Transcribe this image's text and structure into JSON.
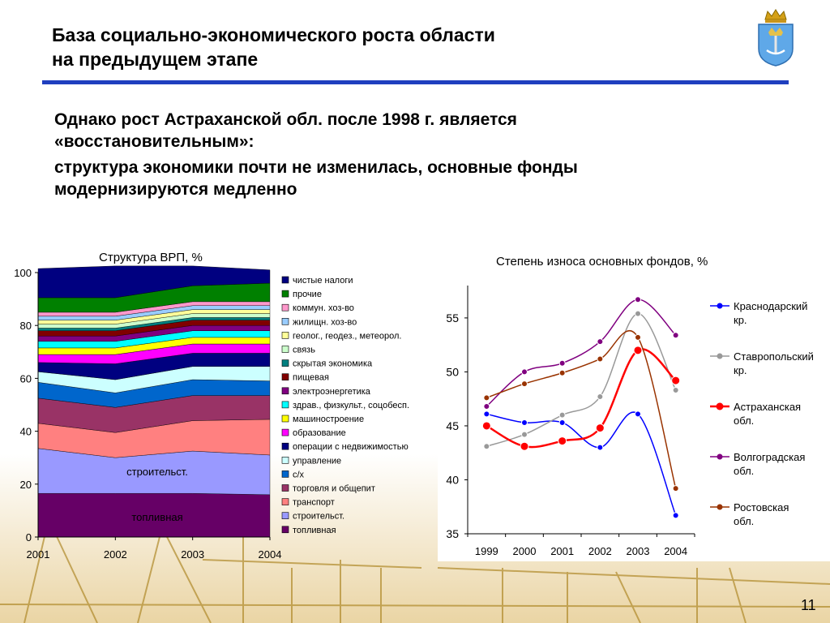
{
  "header": {
    "title_line1": "База социально-экономического роста области",
    "title_line2": "на предыдущем этапе",
    "emblem": "astrakhan-coat-of-arms"
  },
  "body": {
    "line1": "Однако рост Астраханской обл. после 1998 г. является",
    "line2": "«восстановительным»:",
    "line3": "структура экономики почти не изменилась,  основные фонды",
    "line4": "модернизируются медленно"
  },
  "page_number": "11",
  "chart_data": [
    {
      "type": "area",
      "title": "Структура ВРП, %",
      "categories": [
        "2001",
        "2002",
        "2003",
        "2004"
      ],
      "ylim": [
        0,
        100
      ],
      "yticks": [
        0,
        20,
        40,
        60,
        80,
        100
      ],
      "inline_labels": [
        "топливная",
        "строительст."
      ],
      "series": [
        {
          "name": "топливная",
          "color": "#660066",
          "values": [
            16.5,
            16.5,
            16.5,
            16.0
          ]
        },
        {
          "name": "строительст.",
          "color": "#9999ff",
          "values": [
            17.0,
            13.5,
            16.0,
            15.0
          ]
        },
        {
          "name": "транспорт",
          "color": "#ff8080",
          "values": [
            9.5,
            9.5,
            11.5,
            13.5
          ]
        },
        {
          "name": "торговля и общепит",
          "color": "#993366",
          "values": [
            9.5,
            9.5,
            9.5,
            9.0
          ]
        },
        {
          "name": "с/х",
          "color": "#0066cc",
          "values": [
            6.0,
            5.5,
            6.0,
            5.5
          ]
        },
        {
          "name": "управление",
          "color": "#ccffff",
          "values": [
            4.0,
            5.0,
            5.0,
            5.5
          ]
        },
        {
          "name": "операции с недвижимостью",
          "color": "#000080",
          "values": [
            3.5,
            6.0,
            5.0,
            5.0
          ]
        },
        {
          "name": "образование",
          "color": "#ff00ff",
          "values": [
            3.0,
            3.5,
            3.5,
            3.5
          ]
        },
        {
          "name": "машиностроение",
          "color": "#ffff00",
          "values": [
            2.5,
            2.5,
            2.5,
            2.5
          ]
        },
        {
          "name": "здрав., физкульт., соцобесп.",
          "color": "#00ffff",
          "values": [
            2.5,
            2.5,
            2.5,
            2.5
          ]
        },
        {
          "name": "электроэнергетика",
          "color": "#800080",
          "values": [
            2.0,
            2.0,
            2.0,
            2.0
          ]
        },
        {
          "name": "пищевая",
          "color": "#800000",
          "values": [
            2.0,
            2.0,
            2.0,
            2.0
          ]
        },
        {
          "name": "скрытая экономика",
          "color": "#008080",
          "values": [
            1.0,
            1.0,
            1.0,
            1.0
          ]
        },
        {
          "name": "связь",
          "color": "#ccffcc",
          "values": [
            1.5,
            1.5,
            1.5,
            1.5
          ]
        },
        {
          "name": "геолог., геодез., метеорол.",
          "color": "#ffff99",
          "values": [
            1.5,
            1.5,
            1.5,
            1.5
          ]
        },
        {
          "name": "жилищн. хоз-во",
          "color": "#99ccff",
          "values": [
            1.5,
            1.5,
            1.5,
            1.5
          ]
        },
        {
          "name": "коммун. хоз-во",
          "color": "#ff99cc",
          "values": [
            1.5,
            1.5,
            1.5,
            1.5
          ]
        },
        {
          "name": "прочие",
          "color": "#008000",
          "values": [
            5.5,
            5.5,
            6.0,
            7.0
          ]
        },
        {
          "name": "чистые налоги",
          "color": "#000080",
          "values": [
            11.0,
            12.0,
            7.5,
            5.0
          ]
        }
      ],
      "legend_order": [
        "чистые налоги",
        "прочие",
        "коммун. хоз-во",
        "жилищн. хоз-во",
        "геолог., геодез., метеорол.",
        "связь",
        "скрытая экономика",
        "пищевая",
        "электроэнергетика",
        "здрав., физкульт., соцобесп.",
        "машиностроение",
        "образование",
        "операции с недвижимостью",
        "управление",
        "с/х",
        "торговля и общепит",
        "транспорт",
        "строительст.",
        "топливная"
      ],
      "legend_position": "right"
    },
    {
      "type": "line",
      "title": "Степень износа основных фондов, %",
      "x": [
        "1999",
        "2000",
        "2001",
        "2002",
        "2003",
        "2004"
      ],
      "ylim": [
        35,
        58
      ],
      "yticks": [
        35,
        40,
        45,
        50,
        55
      ],
      "grid": false,
      "legend_position": "right",
      "series": [
        {
          "name": "Краснодарский кр.",
          "color": "#0000ff",
          "width": 1.5,
          "values": [
            46.1,
            45.3,
            45.3,
            43.0,
            46.1,
            36.7
          ]
        },
        {
          "name": "Ставропольский кр.",
          "color": "#999999",
          "width": 1.5,
          "values": [
            43.1,
            44.2,
            46.0,
            47.7,
            55.4,
            48.3
          ]
        },
        {
          "name": "Астраханская обл.",
          "color": "#ff0000",
          "width": 2.5,
          "values": [
            45.0,
            43.1,
            43.6,
            44.8,
            52.0,
            49.2
          ]
        },
        {
          "name": "Волгоградская обл.",
          "color": "#800080",
          "width": 1.5,
          "values": [
            46.8,
            50.0,
            50.8,
            52.8,
            56.7,
            53.4
          ]
        },
        {
          "name": "Ростовская обл.",
          "color": "#993300",
          "width": 1.5,
          "values": [
            47.6,
            48.9,
            49.9,
            51.2,
            53.2,
            39.2
          ]
        }
      ]
    }
  ]
}
